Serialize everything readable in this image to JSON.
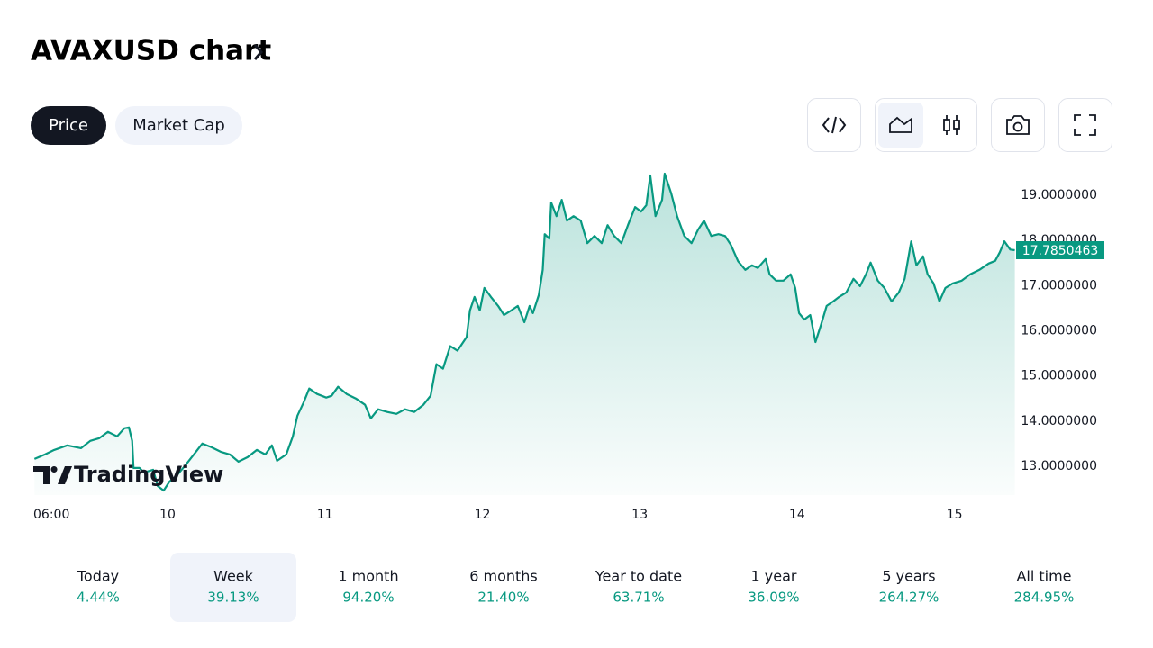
{
  "header": {
    "title": "AVAXUSD chart"
  },
  "tabs": [
    "Price",
    "Market Cap"
  ],
  "selected_tab": 0,
  "chart_data": {
    "type": "area",
    "color": "#089981",
    "x": [
      -2.3,
      -0.7,
      0.7,
      2.7,
      4.8,
      6.2,
      7.6,
      8.9,
      10.3,
      11.4,
      12.1,
      12.6,
      12.8,
      13.7,
      14.4,
      15.8,
      16.5,
      17.4,
      18.3,
      19.2,
      20.6,
      22.0,
      23.3,
      24.7,
      26.1,
      27.5,
      28.8,
      30.2,
      31.6,
      32.9,
      33.9,
      34.7,
      36.1,
      37.1,
      37.8,
      38.7,
      39.6,
      40.8,
      42.2,
      43.0,
      44.0,
      45.3,
      46.7,
      48.1,
      49.0,
      50.1,
      51.5,
      52.9,
      54.2,
      55.6,
      57.0,
      58.1,
      59.0,
      60.0,
      61.1,
      62.2,
      63.6,
      64.1,
      64.8,
      65.6,
      66.3,
      67.3,
      68.4,
      69.3,
      70.4,
      71.4,
      72.4,
      73.2,
      73.7,
      74.6,
      75.2,
      75.5,
      76.2,
      76.5,
      77.3,
      78.1,
      78.9,
      79.9,
      81.0,
      82.0,
      83.1,
      84.2,
      85.1,
      86.1,
      87.2,
      88.2,
      89.3,
      90.2,
      91.0,
      91.6,
      92.4,
      93.4,
      93.8,
      94.8,
      95.7,
      96.8,
      97.9,
      98.9,
      99.8,
      100.9,
      102.0,
      103.0,
      103.9,
      105.0,
      106.1,
      107.1,
      108.0,
      109.2,
      109.8,
      110.8,
      111.9,
      113.0,
      113.7,
      114.3,
      115.1,
      116.0,
      116.8,
      117.6,
      118.5,
      119.5,
      120.4,
      121.5,
      122.6,
      123.6,
      124.5,
      125.2,
      126.3,
      127.3,
      128.4,
      129.5,
      130.4,
      131.4,
      132.2,
      133.2,
      133.9,
      134.8,
      135.7,
      136.6,
      137.7,
      139.1,
      140.4,
      141.8,
      143.2,
      144.2,
      144.9,
      145.6,
      146.5,
      147.2
    ],
    "values": [
      13.16,
      13.26,
      13.36,
      13.46,
      13.4,
      13.56,
      13.62,
      13.76,
      13.66,
      13.84,
      13.86,
      13.56,
      12.96,
      12.96,
      12.86,
      12.92,
      12.56,
      12.46,
      12.66,
      12.76,
      13.0,
      13.26,
      13.5,
      13.42,
      13.32,
      13.26,
      13.1,
      13.2,
      13.36,
      13.26,
      13.46,
      13.12,
      13.26,
      13.66,
      14.12,
      14.4,
      14.72,
      14.6,
      14.52,
      14.56,
      14.76,
      14.6,
      14.5,
      14.36,
      14.06,
      14.26,
      14.2,
      14.16,
      14.26,
      14.2,
      14.36,
      14.56,
      15.26,
      15.16,
      15.66,
      15.56,
      15.86,
      16.45,
      16.75,
      16.45,
      16.95,
      16.75,
      16.55,
      16.35,
      16.45,
      16.55,
      16.19,
      16.55,
      16.39,
      16.79,
      17.35,
      18.14,
      18.04,
      18.84,
      18.54,
      18.9,
      18.44,
      18.54,
      18.44,
      17.94,
      18.1,
      17.94,
      18.34,
      18.1,
      17.94,
      18.34,
      18.74,
      18.64,
      18.78,
      19.44,
      18.54,
      18.9,
      19.48,
      19.04,
      18.54,
      18.1,
      17.94,
      18.24,
      18.44,
      18.1,
      18.14,
      18.1,
      17.9,
      17.54,
      17.35,
      17.45,
      17.39,
      17.59,
      17.25,
      17.11,
      17.11,
      17.25,
      16.95,
      16.39,
      16.25,
      16.35,
      15.75,
      16.11,
      16.55,
      16.65,
      16.75,
      16.85,
      17.15,
      16.99,
      17.25,
      17.51,
      17.11,
      16.95,
      16.65,
      16.85,
      17.15,
      17.98,
      17.45,
      17.65,
      17.25,
      17.05,
      16.65,
      16.95,
      17.05,
      17.11,
      17.25,
      17.35,
      17.49,
      17.55,
      17.74,
      17.98,
      17.8,
      17.7850463
    ],
    "xlim": [
      -2.75,
      147.25
    ],
    "xticks": [
      {
        "value": 0,
        "label": "06:00"
      },
      {
        "value": 18,
        "label": "10"
      },
      {
        "value": 42,
        "label": "11"
      },
      {
        "value": 66,
        "label": "12"
      },
      {
        "value": 90,
        "label": "13"
      },
      {
        "value": 114,
        "label": "14"
      },
      {
        "value": 138,
        "label": "15"
      }
    ],
    "ylim": [
      12.36,
      19.64
    ],
    "yticks": [
      {
        "value": 13,
        "label": "13.0000000"
      },
      {
        "value": 14,
        "label": "14.0000000"
      },
      {
        "value": 15,
        "label": "15.0000000"
      },
      {
        "value": 16,
        "label": "16.0000000"
      },
      {
        "value": 17,
        "label": "17.0000000"
      },
      {
        "value": 18,
        "label": "18.0000000"
      },
      {
        "value": 19,
        "label": "19.0000000"
      }
    ],
    "price_label": {
      "value": 17.7850463,
      "label": "17.7850463"
    },
    "watermark": "TradingView"
  },
  "periods": [
    {
      "label": "Today",
      "change": "4.44%"
    },
    {
      "label": "Week",
      "change": "39.13%"
    },
    {
      "label": "1 month",
      "change": "94.20%"
    },
    {
      "label": "6 months",
      "change": "21.40%"
    },
    {
      "label": "Year to date",
      "change": "63.71%"
    },
    {
      "label": "1 year",
      "change": "36.09%"
    },
    {
      "label": "5 years",
      "change": "264.27%"
    },
    {
      "label": "All time",
      "change": "284.95%"
    }
  ],
  "selected_period": 1
}
